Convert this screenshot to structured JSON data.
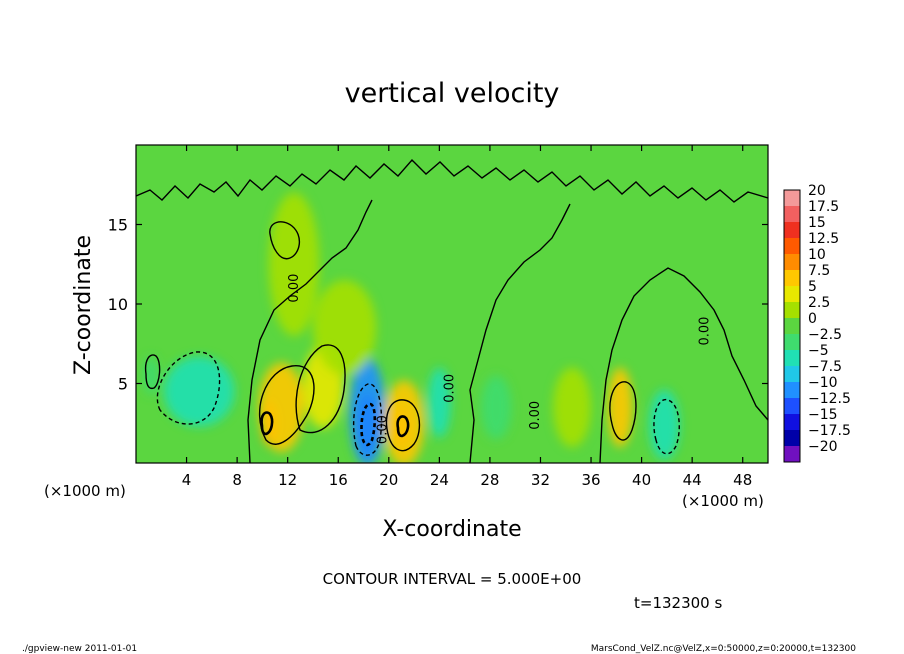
{
  "chart_data": {
    "type": "heatmap",
    "title": "vertical velocity",
    "xlabel": "X-coordinate",
    "ylabel": "Z-coordinate",
    "x_unit_left": "(×1000 m)",
    "x_unit_right": "(×1000 m)",
    "xlim": [
      0,
      50
    ],
    "ylim": [
      0,
      20
    ],
    "x_ticks": [
      "4",
      "8",
      "12",
      "16",
      "20",
      "24",
      "28",
      "32",
      "36",
      "40",
      "44",
      "48"
    ],
    "x_tick_values": [
      4,
      8,
      12,
      16,
      20,
      24,
      28,
      32,
      36,
      40,
      44,
      48
    ],
    "y_ticks": [
      "5",
      "10",
      "15"
    ],
    "y_tick_values": [
      5,
      10,
      15
    ],
    "contour_labels": [
      {
        "text": "0.00",
        "x": 12.8,
        "y": 11.0
      },
      {
        "text": "0.00",
        "x": 19.8,
        "y": 2.1
      },
      {
        "text": "0.00",
        "x": 25.1,
        "y": 4.7
      },
      {
        "text": "0.00",
        "x": 31.9,
        "y": 3.0
      },
      {
        "text": "0.00",
        "x": 45.3,
        "y": 8.3
      }
    ],
    "cells": [
      {
        "x": 10.5,
        "y": 2.5,
        "rx": 0.6,
        "ry": 1.4,
        "value": 11
      },
      {
        "x": 11.5,
        "y": 3.5,
        "rx": 1.8,
        "ry": 2.8,
        "value": 7
      },
      {
        "x": 14.8,
        "y": 4.8,
        "rx": 1.6,
        "ry": 2.6,
        "value": 6
      },
      {
        "x": 18.3,
        "y": 2.4,
        "rx": 0.8,
        "ry": 2.0,
        "value": -14
      },
      {
        "x": 18.3,
        "y": 3.2,
        "rx": 1.4,
        "ry": 3.4,
        "value": -9
      },
      {
        "x": 21.0,
        "y": 2.3,
        "rx": 0.6,
        "ry": 1.3,
        "value": 11
      },
      {
        "x": 21.2,
        "y": 2.5,
        "rx": 1.6,
        "ry": 2.7,
        "value": 7
      },
      {
        "x": 24.0,
        "y": 3.8,
        "rx": 0.9,
        "ry": 2.2,
        "value": -6
      },
      {
        "x": 5.0,
        "y": 4.5,
        "rx": 2.8,
        "ry": 2.2,
        "value": -5
      },
      {
        "x": 1.2,
        "y": 5.5,
        "rx": 0.6,
        "ry": 1.2,
        "value": -3
      },
      {
        "x": 38.3,
        "y": 3.5,
        "rx": 1.0,
        "ry": 2.5,
        "value": 7
      },
      {
        "x": 41.8,
        "y": 2.4,
        "rx": 1.2,
        "ry": 2.2,
        "value": -4
      },
      {
        "x": 28.5,
        "y": 3.5,
        "rx": 1.2,
        "ry": 2.0,
        "value": -2
      },
      {
        "x": 34.5,
        "y": 3.5,
        "rx": 1.5,
        "ry": 2.5,
        "value": 2
      },
      {
        "x": 12.5,
        "y": 12.5,
        "rx": 2.0,
        "ry": 4.5,
        "value": 2
      },
      {
        "x": 16.5,
        "y": 8.5,
        "rx": 2.5,
        "ry": 3.0,
        "value": 3
      }
    ],
    "colorbar": {
      "labels": [
        "20",
        "17.5",
        "15",
        "12.5",
        "10",
        "7.5",
        "5",
        "2.5",
        "0",
        "-2.5",
        "-5",
        "-7.5",
        "-10",
        "-12.5",
        "-15",
        "-17.5",
        "-20"
      ],
      "colors": [
        "#f49a9a",
        "#f26060",
        "#ef3020",
        "#ff5a00",
        "#ff8c00",
        "#ffc800",
        "#e8e800",
        "#a5e000",
        "#5bd640",
        "#3fdc6e",
        "#20e0b4",
        "#20c8e8",
        "#2090ff",
        "#1d50ff",
        "#1010e0",
        "#0000a8",
        "#7010c0"
      ]
    },
    "contour_interval_text": "CONTOUR INTERVAL = 5.000E+00",
    "time_text": "t=132300 s"
  },
  "footer": {
    "left": "./gpview-new   2011-01-01",
    "right": "MarsCond_VelZ.nc@VelZ,x=0:50000,z=0:20000,t=132300"
  }
}
